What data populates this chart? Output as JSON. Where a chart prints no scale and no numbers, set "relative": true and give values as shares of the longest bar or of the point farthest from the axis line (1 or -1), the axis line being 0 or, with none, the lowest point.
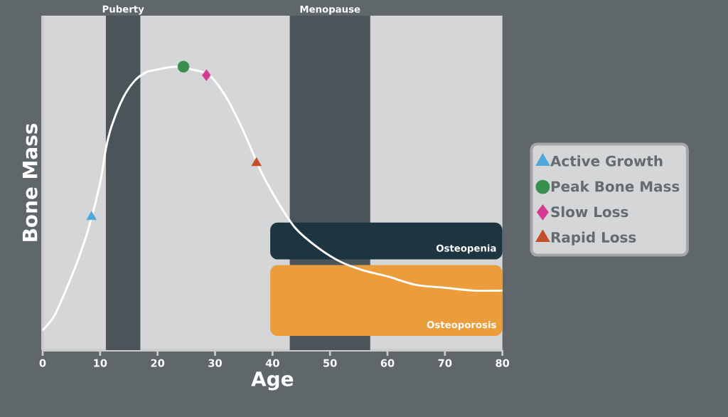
{
  "chart_data": {
    "type": "line",
    "relative": true,
    "xlabel": "Age",
    "ylabel": "Bone Mass",
    "xlim": [
      0,
      80
    ],
    "xticks": [
      0,
      10,
      20,
      30,
      40,
      50,
      60,
      70,
      80
    ],
    "legend": "right",
    "series": [
      {
        "color": "#ffffff",
        "x": [
          0,
          2,
          4,
          6,
          8,
          10,
          11,
          12,
          14,
          16,
          18,
          20,
          23,
          26,
          29,
          32,
          35,
          38,
          41,
          44,
          48,
          52,
          56,
          60,
          65,
          70,
          75,
          80
        ],
        "values": [
          0.07,
          0.12,
          0.21,
          0.31,
          0.43,
          0.59,
          0.71,
          0.79,
          0.89,
          0.95,
          0.98,
          0.99,
          1.0,
          0.99,
          0.97,
          0.89,
          0.77,
          0.63,
          0.52,
          0.43,
          0.36,
          0.31,
          0.28,
          0.26,
          0.23,
          0.22,
          0.21,
          0.21
        ]
      },
      {
        "name": "Active Growth",
        "type": "scatter",
        "marker": "triangle",
        "color": "#4fa6dc",
        "x": [
          8.5
        ],
        "values": [
          0.47
        ]
      },
      {
        "name": "Peak Bone Mass",
        "type": "scatter",
        "marker": "circle",
        "color": "#3a8f4f",
        "x": [
          24.5
        ],
        "values": [
          1.0
        ]
      },
      {
        "name": "Slow Loss",
        "type": "scatter",
        "marker": "diamond",
        "color": "#d63a94",
        "x": [
          28.5
        ],
        "values": [
          0.97
        ]
      },
      {
        "name": "Rapid Loss",
        "type": "scatter",
        "marker": "triangle",
        "color": "#c4502a",
        "x": [
          37.2
        ],
        "values": [
          0.66
        ]
      }
    ],
    "bands": [
      {
        "axis": "x",
        "from": 11,
        "to": 17,
        "label": "Puberty",
        "color": "#4b5559"
      },
      {
        "axis": "x",
        "from": 43,
        "to": 57,
        "label": "Menopause",
        "color": "#4b5559"
      },
      {
        "axis": "y",
        "from": 0.32,
        "to": 0.45,
        "label": "Osteopenia",
        "color": "#1d3441"
      },
      {
        "axis": "y",
        "from": 0.05,
        "to": 0.3,
        "label": "Osteoporosis",
        "color": "#eb9d3c"
      }
    ]
  }
}
